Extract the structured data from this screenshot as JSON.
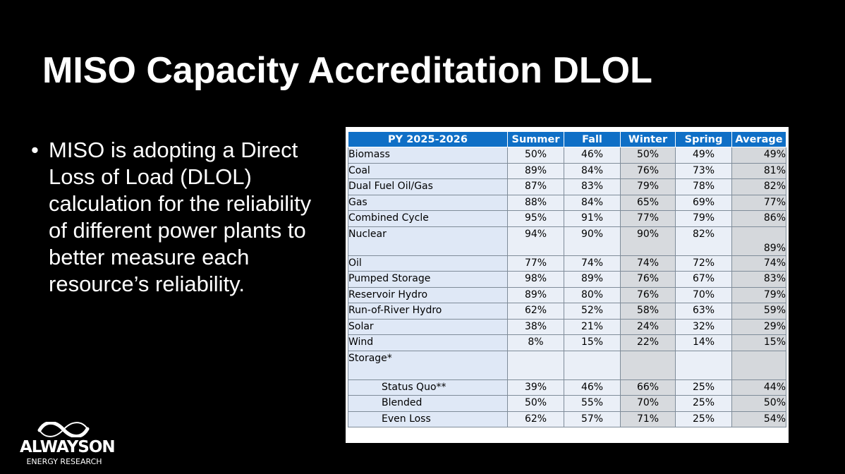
{
  "slide": {
    "title": "MISO Capacity Accreditation DLOL",
    "bullet_marker": "•",
    "bullet": "MISO is adopting a Direct Loss of Load (DLOL) calculation for the reliability of different power plants to better measure each resource’s reliability."
  },
  "table": {
    "headers": [
      "PY 2025-2026",
      "Summer",
      "Fall",
      "Winter",
      "Spring",
      "Average"
    ],
    "rows": [
      {
        "label": "Biomass",
        "summer": "50%",
        "fall": "46%",
        "winter": "50%",
        "spring": "49%",
        "average": "49%"
      },
      {
        "label": "Coal",
        "summer": "89%",
        "fall": "84%",
        "winter": "76%",
        "spring": "73%",
        "average": "81%"
      },
      {
        "label": "Dual Fuel Oil/Gas",
        "summer": "87%",
        "fall": "83%",
        "winter": "79%",
        "spring": "78%",
        "average": "82%"
      },
      {
        "label": "Gas",
        "summer": "88%",
        "fall": "84%",
        "winter": "65%",
        "spring": "69%",
        "average": "77%"
      },
      {
        "label": "Combined Cycle",
        "summer": "95%",
        "fall": "91%",
        "winter": "77%",
        "spring": "79%",
        "average": "86%"
      },
      {
        "label": "Nuclear",
        "summer": "94%",
        "fall": "90%",
        "winter": "90%",
        "spring": "82%",
        "average": "89%"
      },
      {
        "label": "Oil",
        "summer": "77%",
        "fall": "74%",
        "winter": "74%",
        "spring": "72%",
        "average": "74%"
      },
      {
        "label": "Pumped Storage",
        "summer": "98%",
        "fall": "89%",
        "winter": "76%",
        "spring": "67%",
        "average": "83%"
      },
      {
        "label": "Reservoir Hydro",
        "summer": "89%",
        "fall": "80%",
        "winter": "76%",
        "spring": "70%",
        "average": "79%"
      },
      {
        "label": "Run-of-River Hydro",
        "summer": "62%",
        "fall": "52%",
        "winter": "58%",
        "spring": "63%",
        "average": "59%"
      },
      {
        "label": "Solar",
        "summer": "38%",
        "fall": "21%",
        "winter": "24%",
        "spring": "32%",
        "average": "29%"
      },
      {
        "label": "Wind",
        "summer": "8%",
        "fall": "15%",
        "winter": "22%",
        "spring": "14%",
        "average": "15%"
      },
      {
        "label": "Storage*",
        "summer": "",
        "fall": "",
        "winter": "",
        "spring": "",
        "average": ""
      },
      {
        "label": "Status Quo**",
        "summer": "39%",
        "fall": "46%",
        "winter": "66%",
        "spring": "25%",
        "average": "44%"
      },
      {
        "label": "Blended",
        "summer": "50%",
        "fall": "55%",
        "winter": "70%",
        "spring": "25%",
        "average": "50%"
      },
      {
        "label": "Even Loss",
        "summer": "62%",
        "fall": "57%",
        "winter": "71%",
        "spring": "25%",
        "average": "54%"
      }
    ]
  },
  "logo": {
    "icon": "infinity-wave-icon",
    "name": "ALWAYSON",
    "tagline": "ENERGY RESEARCH"
  },
  "colors": {
    "background": "#000000",
    "header": "#0f6fc6",
    "label_cell": "#dfe8f6",
    "value_cell": "#eaeff7",
    "average_cell": "#d5d8dc"
  }
}
